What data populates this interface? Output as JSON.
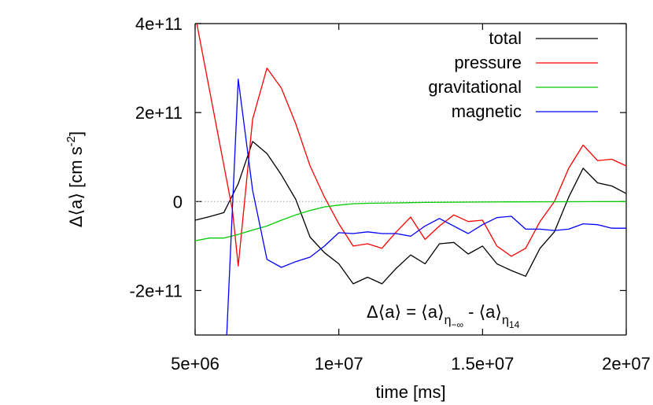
{
  "chart_data": {
    "type": "line",
    "xlabel": "time [ms]",
    "ylabel": "Δ⟨a⟩ [cm s",
    "ylabel_sup": "-2",
    "ylabel_close": "]",
    "xlim": [
      5000000,
      20000000
    ],
    "ylim": [
      -300000000000,
      400000000000
    ],
    "x_ticks": [
      {
        "value": 5000000,
        "label": "5e+06"
      },
      {
        "value": 10000000,
        "label": "1e+07"
      },
      {
        "value": 15000000,
        "label": "1.5e+07"
      },
      {
        "value": 20000000,
        "label": "2e+07"
      }
    ],
    "y_ticks": [
      {
        "value": 400000000000,
        "label": "4e+11"
      },
      {
        "value": 200000000000,
        "label": "2e+11"
      },
      {
        "value": 0,
        "label": "0"
      },
      {
        "value": -200000000000,
        "label": "-2e+11"
      }
    ],
    "zero_line": true,
    "grid": false,
    "legend_position": "top-right",
    "annotation": {
      "base": "Δ⟨a⟩ = ⟨a⟩",
      "sub1": "η",
      "sub1_sub": "−∞",
      "mid": " - ⟨a⟩",
      "sub2": "η",
      "sub2_sub": "14"
    },
    "series": [
      {
        "name": "total",
        "color": "#000000",
        "points": [
          [
            5000000,
            -42000000000
          ],
          [
            5500000,
            -34000000000
          ],
          [
            6000000,
            -25000000000
          ],
          [
            6500000,
            40000000000
          ],
          [
            7000000,
            135000000000
          ],
          [
            7500000,
            108000000000
          ],
          [
            8000000,
            60000000000
          ],
          [
            8500000,
            5000000000
          ],
          [
            9000000,
            -80000000000
          ],
          [
            9500000,
            -115000000000
          ],
          [
            10000000,
            -140000000000
          ],
          [
            10500000,
            -185000000000
          ],
          [
            11000000,
            -170000000000
          ],
          [
            11500000,
            -185000000000
          ],
          [
            12000000,
            -150000000000
          ],
          [
            12500000,
            -120000000000
          ],
          [
            13000000,
            -140000000000
          ],
          [
            13500000,
            -95000000000
          ],
          [
            14000000,
            -92000000000
          ],
          [
            14500000,
            -118000000000
          ],
          [
            15000000,
            -100000000000
          ],
          [
            15500000,
            -140000000000
          ],
          [
            16000000,
            -155000000000
          ],
          [
            16500000,
            -168000000000
          ],
          [
            17000000,
            -105000000000
          ],
          [
            17500000,
            -68000000000
          ],
          [
            18000000,
            10000000000
          ],
          [
            18500000,
            75000000000
          ],
          [
            19000000,
            42000000000
          ],
          [
            19500000,
            35000000000
          ],
          [
            20000000,
            18000000000
          ]
        ]
      },
      {
        "name": "pressure",
        "color": "#ff0000",
        "points": [
          [
            5000000,
            420000000000
          ],
          [
            6300000,
            -20000000000
          ],
          [
            6500000,
            -145000000000
          ],
          [
            7000000,
            185000000000
          ],
          [
            7500000,
            300000000000
          ],
          [
            8000000,
            255000000000
          ],
          [
            8500000,
            175000000000
          ],
          [
            9000000,
            80000000000
          ],
          [
            9500000,
            10000000000
          ],
          [
            10000000,
            -50000000000
          ],
          [
            10500000,
            -100000000000
          ],
          [
            11000000,
            -95000000000
          ],
          [
            11500000,
            -105000000000
          ],
          [
            12000000,
            -68000000000
          ],
          [
            12500000,
            -35000000000
          ],
          [
            13000000,
            -85000000000
          ],
          [
            13500000,
            -55000000000
          ],
          [
            14000000,
            -30000000000
          ],
          [
            14500000,
            -45000000000
          ],
          [
            15000000,
            -42000000000
          ],
          [
            15500000,
            -100000000000
          ],
          [
            16000000,
            -123000000000
          ],
          [
            16500000,
            -105000000000
          ],
          [
            17000000,
            -45000000000
          ],
          [
            17500000,
            0
          ],
          [
            18000000,
            75000000000
          ],
          [
            18500000,
            127000000000
          ],
          [
            19000000,
            92000000000
          ],
          [
            19500000,
            95000000000
          ],
          [
            20000000,
            80000000000
          ]
        ]
      },
      {
        "name": "gravitational",
        "color": "#00cc00",
        "points": [
          [
            5000000,
            -88000000000
          ],
          [
            5500000,
            -82000000000
          ],
          [
            6000000,
            -82000000000
          ],
          [
            6500000,
            -74000000000
          ],
          [
            7000000,
            -64000000000
          ],
          [
            7500000,
            -55000000000
          ],
          [
            8000000,
            -42000000000
          ],
          [
            8500000,
            -30000000000
          ],
          [
            9000000,
            -20000000000
          ],
          [
            9500000,
            -12000000000
          ],
          [
            10000000,
            -8000000000
          ],
          [
            10500000,
            -5000000000
          ],
          [
            11000000,
            -4000000000
          ],
          [
            12000000,
            -3000000000
          ],
          [
            13000000,
            -2000000000
          ],
          [
            14000000,
            -1500000000
          ],
          [
            15000000,
            -1000000000
          ],
          [
            16000000,
            -800000000
          ],
          [
            17000000,
            -500000000
          ],
          [
            18000000,
            -300000000
          ],
          [
            19000000,
            -200000000
          ],
          [
            20000000,
            0
          ]
        ]
      },
      {
        "name": "magnetic",
        "color": "#0000ff",
        "points": [
          [
            6100000,
            -300000000000
          ],
          [
            6500000,
            275000000000
          ],
          [
            7000000,
            25000000000
          ],
          [
            7500000,
            -130000000000
          ],
          [
            8000000,
            -148000000000
          ],
          [
            8500000,
            -135000000000
          ],
          [
            9000000,
            -125000000000
          ],
          [
            9500000,
            -100000000000
          ],
          [
            10000000,
            -70000000000
          ],
          [
            10500000,
            -72000000000
          ],
          [
            11000000,
            -68000000000
          ],
          [
            11500000,
            -72000000000
          ],
          [
            12000000,
            -72000000000
          ],
          [
            12500000,
            -78000000000
          ],
          [
            13000000,
            -55000000000
          ],
          [
            13500000,
            -38000000000
          ],
          [
            14000000,
            -55000000000
          ],
          [
            14500000,
            -72000000000
          ],
          [
            15000000,
            -52000000000
          ],
          [
            15500000,
            -36000000000
          ],
          [
            16000000,
            -33000000000
          ],
          [
            16500000,
            -62000000000
          ],
          [
            17000000,
            -62000000000
          ],
          [
            17500000,
            -65000000000
          ],
          [
            18000000,
            -62000000000
          ],
          [
            18500000,
            -50000000000
          ],
          [
            19000000,
            -52000000000
          ],
          [
            19500000,
            -60000000000
          ],
          [
            20000000,
            -60000000000
          ]
        ]
      }
    ]
  }
}
